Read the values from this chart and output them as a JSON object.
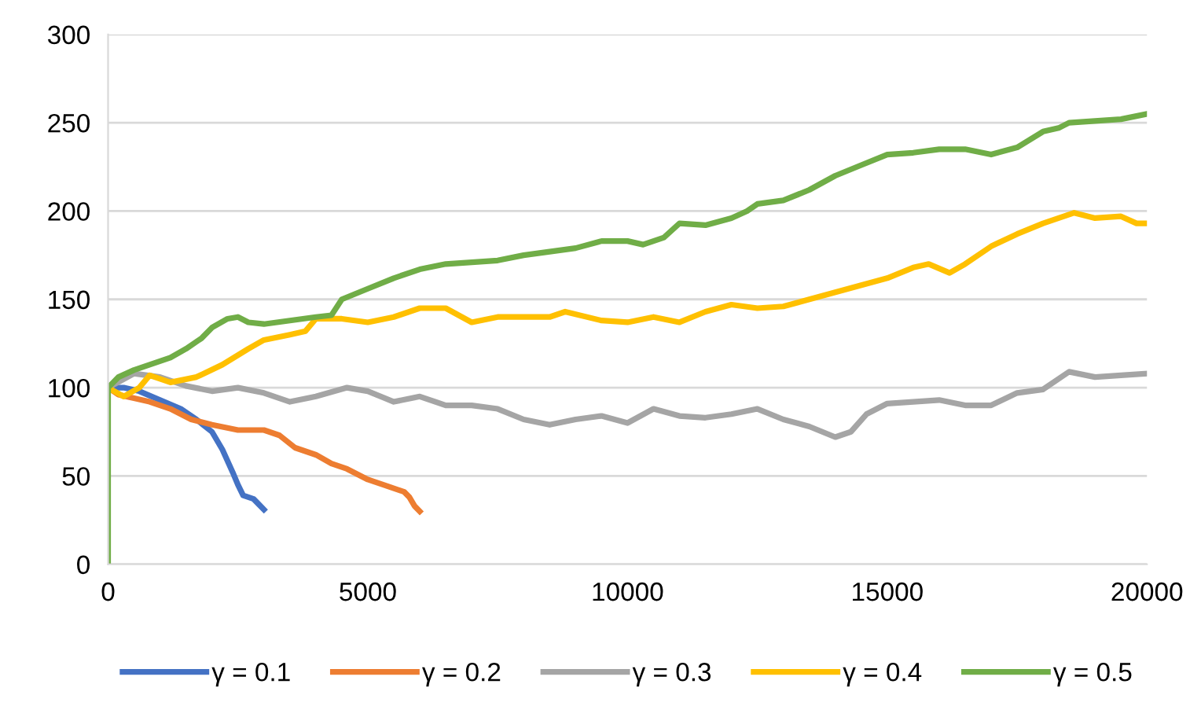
{
  "chart_data": {
    "type": "line",
    "xlim": [
      0,
      20000
    ],
    "xticks": [
      0,
      5000,
      10000,
      15000,
      20000
    ],
    "ylim": [
      0,
      300
    ],
    "yticks": [
      0,
      50,
      100,
      150,
      200,
      250,
      300
    ],
    "grid": "y",
    "legend": "bottom",
    "marker": "none",
    "line_style": "solid",
    "series": [
      {
        "name": "γ = 0.1",
        "color": "#4472c4",
        "x": [
          0,
          300,
          600,
          1000,
          1400,
          1700,
          2000,
          2200,
          2400,
          2500,
          2600,
          2800,
          2900,
          3000
        ],
        "values": [
          100,
          100,
          98,
          93,
          88,
          82,
          75,
          65,
          52,
          45,
          39,
          37,
          34,
          31
        ]
      },
      {
        "name": "γ = 0.2",
        "color": "#ed7d31",
        "x": [
          0,
          200,
          500,
          800,
          1200,
          1600,
          2000,
          2500,
          3000,
          3300,
          3600,
          4000,
          4300,
          4600,
          5000,
          5400,
          5700,
          5800,
          5900,
          6000
        ],
        "values": [
          100,
          96,
          94,
          92,
          88,
          82,
          79,
          76,
          76,
          73,
          66,
          62,
          57,
          54,
          48,
          44,
          41,
          38,
          33,
          30
        ]
      },
      {
        "name": "γ = 0.3",
        "color": "#a5a5a5",
        "x": [
          0,
          500,
          1000,
          1500,
          2000,
          2500,
          3000,
          3500,
          4000,
          4600,
          5000,
          5500,
          6000,
          6500,
          7000,
          7500,
          8000,
          8500,
          9000,
          9500,
          10000,
          10500,
          11000,
          11500,
          12000,
          12500,
          13000,
          13500,
          14000,
          14300,
          14600,
          15000,
          15500,
          16000,
          16500,
          17000,
          17500,
          18000,
          18500,
          19000,
          19500,
          20000
        ],
        "values": [
          100,
          108,
          106,
          101,
          98,
          100,
          97,
          92,
          95,
          100,
          98,
          92,
          95,
          90,
          90,
          88,
          82,
          79,
          82,
          84,
          80,
          88,
          84,
          83,
          85,
          88,
          82,
          78,
          72,
          75,
          85,
          91,
          92,
          93,
          90,
          90,
          97,
          99,
          109,
          106,
          107,
          108
        ]
      },
      {
        "name": "γ = 0.4",
        "color": "#ffc000",
        "x": [
          0,
          300,
          600,
          800,
          1200,
          1700,
          2200,
          2700,
          3000,
          3500,
          3800,
          4000,
          4500,
          5000,
          5500,
          6000,
          6500,
          7000,
          7500,
          8500,
          8800,
          9500,
          10000,
          10500,
          11000,
          11500,
          12000,
          12500,
          13000,
          13500,
          14000,
          14500,
          15000,
          15500,
          15800,
          16200,
          16500,
          17000,
          17500,
          18000,
          18600,
          19000,
          19500,
          19800,
          20000
        ],
        "values": [
          100,
          95,
          100,
          107,
          103,
          106,
          113,
          122,
          127,
          130,
          132,
          139,
          139,
          137,
          140,
          145,
          145,
          137,
          140,
          140,
          143,
          138,
          137,
          140,
          137,
          143,
          147,
          145,
          146,
          150,
          154,
          158,
          162,
          168,
          170,
          165,
          170,
          180,
          187,
          193,
          199,
          196,
          197,
          193,
          193
        ]
      },
      {
        "name": "γ = 0.5",
        "color": "#70ad47",
        "x": [
          0,
          0,
          200,
          500,
          800,
          1200,
          1500,
          1800,
          2000,
          2300,
          2500,
          2700,
          3000,
          3500,
          4000,
          4300,
          4500,
          5000,
          5500,
          6000,
          6500,
          7000,
          7500,
          8000,
          8500,
          9000,
          9500,
          10000,
          10300,
          10700,
          11000,
          11500,
          12000,
          12300,
          12500,
          13000,
          13500,
          14000,
          14500,
          15000,
          15500,
          16000,
          16500,
          17000,
          17500,
          18000,
          18300,
          18500,
          19000,
          19500,
          20000
        ],
        "values": [
          0,
          100,
          106,
          110,
          113,
          117,
          122,
          128,
          134,
          139,
          140,
          137,
          136,
          138,
          140,
          141,
          150,
          156,
          162,
          167,
          170,
          171,
          172,
          175,
          177,
          179,
          183,
          183,
          181,
          185,
          193,
          192,
          196,
          200,
          204,
          206,
          212,
          220,
          226,
          232,
          233,
          235,
          235,
          232,
          236,
          245,
          247,
          250,
          251,
          252,
          255
        ]
      }
    ]
  }
}
